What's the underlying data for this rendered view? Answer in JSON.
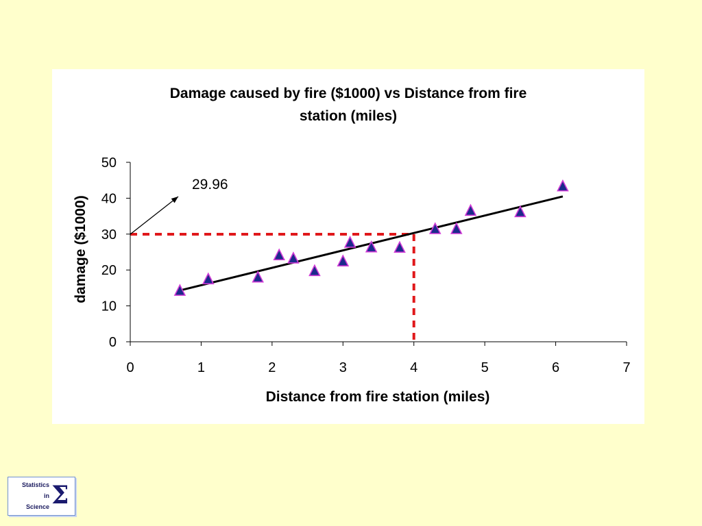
{
  "chart_data": {
    "type": "scatter",
    "title_lines": [
      "Damage caused by fire ($1000) vs Distance from fire",
      "station (miles)"
    ],
    "xlabel": "Distance from fire station (miles)",
    "ylabel": "damage ($1000)",
    "xlim": [
      0,
      7
    ],
    "ylim": [
      0,
      50
    ],
    "x_ticks": [
      0,
      1,
      2,
      3,
      4,
      5,
      6,
      7
    ],
    "y_ticks": [
      0,
      10,
      20,
      30,
      40,
      50
    ],
    "series": [
      {
        "name": "damage",
        "marker": "triangle",
        "x": [
          0.7,
          1.1,
          1.8,
          2.1,
          2.3,
          2.6,
          3.0,
          3.1,
          3.4,
          3.8,
          4.3,
          4.6,
          4.8,
          5.5,
          6.1
        ],
        "y": [
          14.1,
          17.3,
          17.8,
          24.0,
          23.1,
          19.6,
          22.3,
          27.5,
          26.2,
          26.1,
          31.3,
          31.3,
          36.4,
          36.0,
          43.2
        ]
      }
    ],
    "trendline": {
      "x": [
        0.7,
        6.1
      ],
      "y": [
        14.3,
        40.5
      ]
    },
    "reference_lines": {
      "x": 4,
      "y": 29.96
    },
    "annotation": {
      "text": "29.96",
      "points_to": [
        0,
        29.96
      ]
    }
  },
  "logo": {
    "line1": "Statistics",
    "line2": "in",
    "line3": "Science",
    "symbol": "Σ"
  },
  "colors": {
    "background": "#ffffcc",
    "marker_fill": "#1c2a8c",
    "marker_edge": "#d03ad6",
    "reference": "#e0181b",
    "trend": "#000000"
  }
}
